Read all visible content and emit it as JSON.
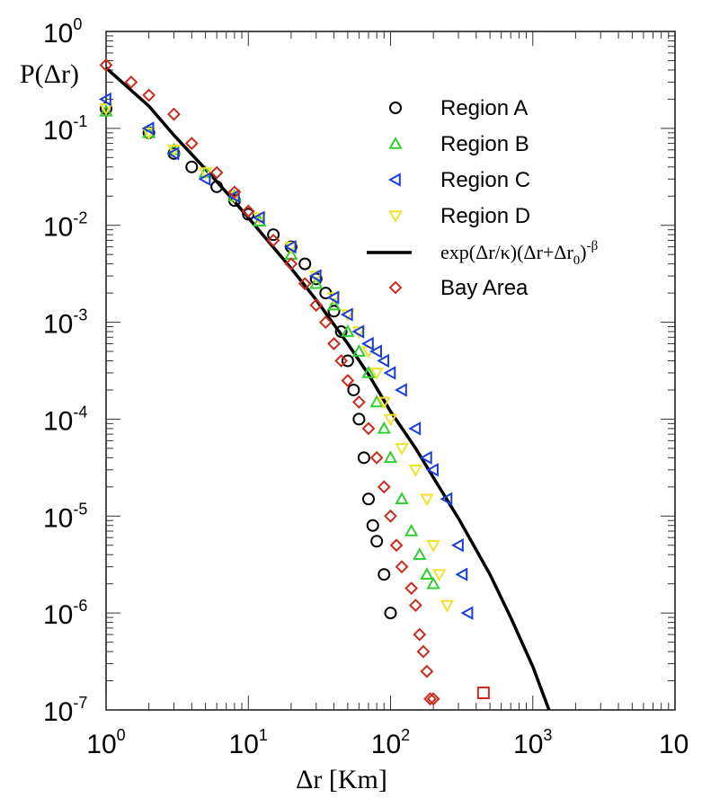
{
  "chart_data": {
    "type": "scatter",
    "xlabel": "Δr [Km]",
    "ylabel": "P(Δr)",
    "xscale": "log",
    "yscale": "log",
    "xlim": [
      1,
      10000
    ],
    "ylim": [
      1e-07,
      1
    ],
    "x_ticks": [
      {
        "base": "10",
        "exp": "0",
        "value": 1
      },
      {
        "base": "10",
        "exp": "1",
        "value": 10
      },
      {
        "base": "10",
        "exp": "2",
        "value": 100
      },
      {
        "base": "10",
        "exp": "3",
        "value": 1000
      },
      {
        "base": "10",
        "exp": "",
        "value": 10000
      }
    ],
    "y_ticks": [
      {
        "base": "10",
        "exp": "0",
        "value": 1
      },
      {
        "base": "10",
        "exp": "-1",
        "value": 0.1
      },
      {
        "base": "10",
        "exp": "-2",
        "value": 0.01
      },
      {
        "base": "10",
        "exp": "-3",
        "value": 0.001
      },
      {
        "base": "10",
        "exp": "-4",
        "value": 0.0001
      },
      {
        "base": "10",
        "exp": "-5",
        "value": 1e-05
      },
      {
        "base": "10",
        "exp": "-6",
        "value": 1e-06
      },
      {
        "base": "10",
        "exp": "-7",
        "value": 1e-07
      }
    ],
    "legend_position": "top-right",
    "legend": [
      {
        "label": "Region A",
        "marker": "circle",
        "color": "#000000"
      },
      {
        "label": "Region B",
        "marker": "triangle-up",
        "color": "#33cc33"
      },
      {
        "label": "Region C",
        "marker": "triangle-left",
        "color": "#1a3fd6"
      },
      {
        "label": "Region D",
        "marker": "triangle-down",
        "color": "#f0e030"
      },
      {
        "label_parts": [
          "exp(Δr/κ)(Δr+Δr",
          "0",
          ")",
          "-β"
        ],
        "marker": "line",
        "color": "#000000"
      },
      {
        "label": "Bay Area",
        "marker": "diamond",
        "color": "#cc2b1f"
      }
    ],
    "fit_curve": {
      "color": "#000000",
      "points": [
        [
          1,
          0.42
        ],
        [
          2,
          0.17
        ],
        [
          3,
          0.085
        ],
        [
          5,
          0.038
        ],
        [
          7,
          0.022
        ],
        [
          10,
          0.012
        ],
        [
          20,
          0.0036
        ],
        [
          30,
          0.0017
        ],
        [
          50,
          0.0006
        ],
        [
          70,
          0.00029
        ],
        [
          100,
          0.00012
        ],
        [
          150,
          5e-05
        ],
        [
          200,
          2.5e-05
        ],
        [
          300,
          9.5e-06
        ],
        [
          500,
          2.5e-06
        ],
        [
          700,
          9e-07
        ],
        [
          1000,
          2.8e-07
        ],
        [
          1300,
          1e-07
        ]
      ]
    },
    "series": [
      {
        "name": "Region A",
        "marker": "circle",
        "color": "#000000",
        "points": [
          [
            1,
            0.16
          ],
          [
            2,
            0.09
          ],
          [
            3,
            0.055
          ],
          [
            4,
            0.04
          ],
          [
            6,
            0.025
          ],
          [
            8,
            0.018
          ],
          [
            10,
            0.013
          ],
          [
            15,
            0.008
          ],
          [
            20,
            0.006
          ],
          [
            25,
            0.004
          ],
          [
            30,
            0.0028
          ],
          [
            35,
            0.002
          ],
          [
            40,
            0.0013
          ],
          [
            45,
            0.0008
          ],
          [
            50,
            0.0004
          ],
          [
            55,
            0.0002
          ],
          [
            60,
            0.0001
          ],
          [
            65,
            4e-05
          ],
          [
            70,
            1.5e-05
          ],
          [
            75,
            8e-06
          ],
          [
            80,
            5.5e-06
          ],
          [
            90,
            2.5e-06
          ],
          [
            100,
            1e-06
          ]
        ]
      },
      {
        "name": "Region B",
        "marker": "triangle-up",
        "color": "#33cc33",
        "points": [
          [
            1,
            0.15
          ],
          [
            2,
            0.09
          ],
          [
            3,
            0.06
          ],
          [
            5,
            0.035
          ],
          [
            8,
            0.02
          ],
          [
            12,
            0.011
          ],
          [
            20,
            0.005
          ],
          [
            30,
            0.0025
          ],
          [
            40,
            0.0015
          ],
          [
            50,
            0.0008
          ],
          [
            60,
            0.0005
          ],
          [
            70,
            0.0003
          ],
          [
            80,
            0.00015
          ],
          [
            90,
            8e-05
          ],
          [
            100,
            4e-05
          ],
          [
            120,
            1.5e-05
          ],
          [
            140,
            7e-06
          ],
          [
            160,
            4e-06
          ],
          [
            180,
            2.5e-06
          ],
          [
            200,
            2e-06
          ]
        ]
      },
      {
        "name": "Region C",
        "marker": "triangle-left",
        "color": "#1a3fd6",
        "points": [
          [
            1,
            0.2
          ],
          [
            2,
            0.1
          ],
          [
            3,
            0.055
          ],
          [
            5,
            0.03
          ],
          [
            8,
            0.02
          ],
          [
            12,
            0.012
          ],
          [
            20,
            0.006
          ],
          [
            30,
            0.003
          ],
          [
            40,
            0.0018
          ],
          [
            50,
            0.0012
          ],
          [
            60,
            0.0008
          ],
          [
            70,
            0.0006
          ],
          [
            80,
            0.0005
          ],
          [
            90,
            0.0004
          ],
          [
            100,
            0.0003
          ],
          [
            120,
            0.0002
          ],
          [
            150,
            8e-05
          ],
          [
            180,
            4e-05
          ],
          [
            200,
            3e-05
          ],
          [
            250,
            1.5e-05
          ],
          [
            300,
            5e-06
          ],
          [
            320,
            2.5e-06
          ],
          [
            350,
            1e-06
          ]
        ]
      },
      {
        "name": "Region D",
        "marker": "triangle-down",
        "color": "#f0e030",
        "points": [
          [
            1,
            0.16
          ],
          [
            2,
            0.09
          ],
          [
            3,
            0.06
          ],
          [
            5,
            0.035
          ],
          [
            8,
            0.02
          ],
          [
            12,
            0.012
          ],
          [
            20,
            0.006
          ],
          [
            30,
            0.003
          ],
          [
            40,
            0.0018
          ],
          [
            50,
            0.0012
          ],
          [
            60,
            0.0008
          ],
          [
            70,
            0.0005
          ],
          [
            80,
            0.0003
          ],
          [
            90,
            0.00015
          ],
          [
            100,
            0.0001
          ],
          [
            120,
            5e-05
          ],
          [
            150,
            3e-05
          ],
          [
            180,
            1.5e-05
          ],
          [
            200,
            5e-06
          ],
          [
            220,
            2.5e-06
          ],
          [
            250,
            1.2e-06
          ]
        ]
      },
      {
        "name": "Bay Area",
        "marker": "diamond",
        "color": "#cc2b1f",
        "points": [
          [
            1,
            0.45
          ],
          [
            1.5,
            0.3
          ],
          [
            2,
            0.22
          ],
          [
            3,
            0.14
          ],
          [
            4,
            0.07
          ],
          [
            6,
            0.035
          ],
          [
            8,
            0.022
          ],
          [
            10,
            0.014
          ],
          [
            15,
            0.007
          ],
          [
            20,
            0.004
          ],
          [
            25,
            0.0025
          ],
          [
            30,
            0.0015
          ],
          [
            35,
            0.001
          ],
          [
            40,
            0.0006
          ],
          [
            45,
            0.0004
          ],
          [
            50,
            0.00025
          ],
          [
            60,
            0.00015
          ],
          [
            70,
            8e-05
          ],
          [
            80,
            4e-05
          ],
          [
            90,
            2e-05
          ],
          [
            100,
            1e-05
          ],
          [
            110,
            5e-06
          ],
          [
            120,
            3e-06
          ],
          [
            140,
            1.8e-06
          ],
          [
            150,
            1.2e-06
          ],
          [
            160,
            6e-07
          ],
          [
            170,
            4e-07
          ],
          [
            180,
            2.5e-07
          ],
          [
            190,
            1.3e-07
          ],
          [
            200,
            1.3e-07
          ]
        ]
      },
      {
        "name": "",
        "marker": "square",
        "color": "#cc2b1f",
        "points": [
          [
            450,
            1.5e-07
          ]
        ]
      }
    ]
  }
}
